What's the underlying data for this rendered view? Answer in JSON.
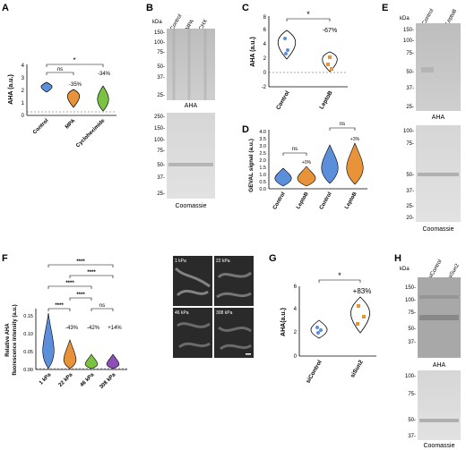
{
  "figure": {
    "panels": {
      "A": {
        "letter": "A",
        "ylabel": "AHA (a.u.)",
        "yticks": [
          "0",
          "1",
          "2",
          "3",
          "4"
        ],
        "categories": [
          "Control",
          "MPA",
          "Cycloheximide"
        ],
        "sig": [
          "ns",
          "*"
        ],
        "pct": [
          "-35%",
          "-34%"
        ]
      },
      "B": {
        "letter": "B",
        "unit": "kDa",
        "lanes": [
          "Control",
          "MPA",
          "CHX"
        ],
        "markers_top": [
          "150-",
          "100-",
          "75-",
          "50-",
          "37-",
          "25-"
        ],
        "markers_bottom": [
          "250-",
          "150-",
          "100-",
          "75-",
          "50-",
          "37-",
          "25-"
        ],
        "label_top": "AHA",
        "label_bottom": "Coomassie"
      },
      "C": {
        "letter": "C",
        "ylabel": "AHA (a.u.)",
        "yticks": [
          "-2",
          "0",
          "2",
          "4",
          "6",
          "8"
        ],
        "categories": [
          "Control",
          "LeptoB"
        ],
        "sig": "*",
        "pct": "-67%"
      },
      "D": {
        "letter": "D",
        "ylabel": "GEVAL signal (a.u.)",
        "yticks": [
          "0.0",
          "0.5",
          "1.0",
          "1.5",
          "2.0",
          "2.5",
          "3.0",
          "3.5",
          "4.0"
        ],
        "categories": [
          "Control",
          "LeptoB",
          "Control",
          "LeptoB"
        ],
        "sig": [
          "ns",
          "ns"
        ],
        "pct": [
          "+0%",
          "+3%"
        ]
      },
      "E": {
        "letter": "E",
        "unit": "kDa",
        "lanes": [
          "Control",
          "LeptoB"
        ],
        "markers_top": [
          "150-",
          "100-",
          "75-",
          "50-",
          "37-",
          "25-"
        ],
        "markers_bottom": [
          "100-",
          "75-",
          "50-",
          "37-",
          "25-",
          "20-"
        ],
        "label_top": "AHA",
        "label_bottom": "Coomassie"
      },
      "F": {
        "letter": "F",
        "ylabel_1": "Relative AHA",
        "ylabel_2": "fluorescence intensity (a.u.)",
        "yticks": [
          "0.00",
          "0.05",
          "0.10",
          "0.15"
        ],
        "categories": [
          "1 kPa",
          "22 kPa",
          "46 kPa",
          "308 kPa"
        ],
        "sig": [
          "****",
          "****",
          "****",
          "****",
          "****",
          "ns"
        ],
        "pct": [
          "-43%",
          "-42%",
          "+14%"
        ],
        "micro_labels": [
          "1 kPa",
          "22 kPa",
          "46 kPa",
          "308 kPa"
        ]
      },
      "G": {
        "letter": "G",
        "ylabel": "AHA(a.u.)",
        "yticks": [
          "0",
          "2",
          "4",
          "6"
        ],
        "categories": [
          "siControl",
          "siSun2"
        ],
        "sig": "*",
        "pct": "+83%"
      },
      "H": {
        "letter": "H",
        "unit": "kDa",
        "lanes": [
          "siControl",
          "siSun2"
        ],
        "markers_top": [
          "150-",
          "100-",
          "75-",
          "50-",
          "37-"
        ],
        "markers_bottom": [
          "100-",
          "75-",
          "50-",
          "37-"
        ],
        "label_top": "AHA",
        "label_bottom": "Coomassie"
      }
    },
    "colors": {
      "blue": "#5b8fd9",
      "orange": "#e8923a",
      "green": "#7cc242",
      "purple": "#8c4fb8",
      "gray": "#9a9a9a"
    }
  }
}
